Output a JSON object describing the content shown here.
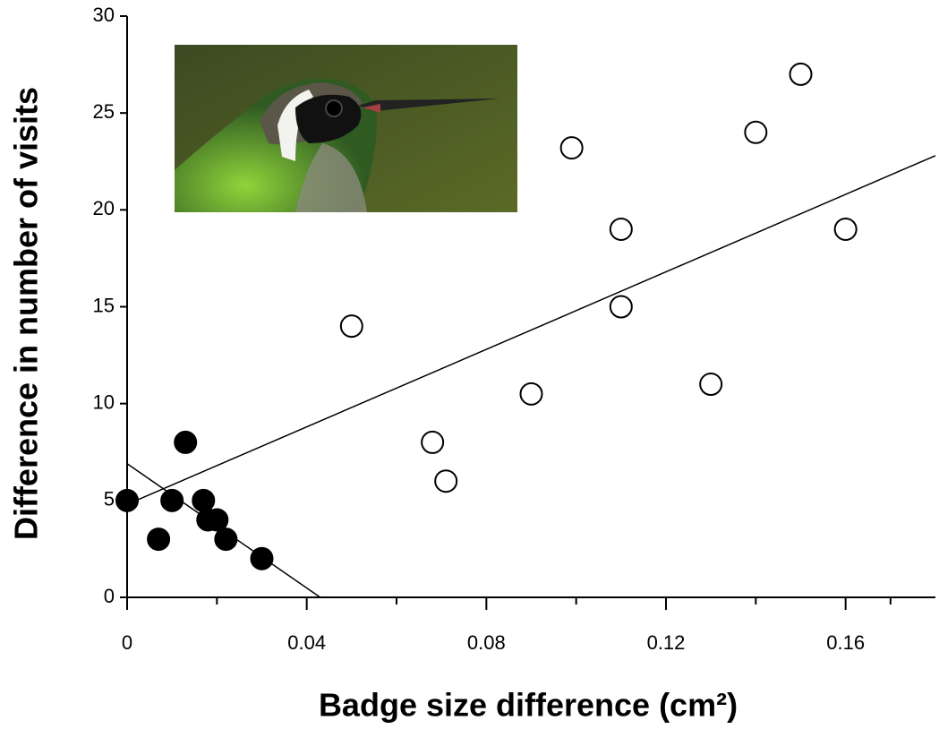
{
  "chart_data": {
    "type": "scatter",
    "xlabel": "Badge size difference (cm²)",
    "ylabel": "Difference in number of visits",
    "xlim": [
      0,
      0.18
    ],
    "ylim": [
      0,
      30
    ],
    "xticks": [
      0,
      0.04,
      0.08,
      0.12,
      0.16
    ],
    "yticks": [
      0,
      5,
      10,
      15,
      20,
      25,
      30
    ],
    "series": [
      {
        "name": null,
        "color": "#000000",
        "filled": true,
        "x": [
          0,
          0.007,
          0.01,
          0.013,
          0.017,
          0.018,
          0.02,
          0.022,
          0.03
        ],
        "values": [
          5,
          3,
          5,
          8,
          5,
          4,
          4,
          3,
          2
        ]
      },
      {
        "name": null,
        "color": "#000000",
        "filled": false,
        "x": [
          0.05,
          0.068,
          0.071,
          0.09,
          0.099,
          0.11,
          0.11,
          0.13,
          0.14,
          0.15,
          0.16
        ],
        "values": [
          14,
          8,
          6,
          10.5,
          23.2,
          19,
          15,
          11,
          24,
          27,
          19
        ]
      }
    ],
    "fit_lines": [
      {
        "x": [
          0,
          0.18
        ],
        "values": [
          4.8,
          22.8
        ]
      },
      {
        "x": [
          0,
          0.043
        ],
        "values": [
          6.9,
          0
        ]
      }
    ]
  }
}
